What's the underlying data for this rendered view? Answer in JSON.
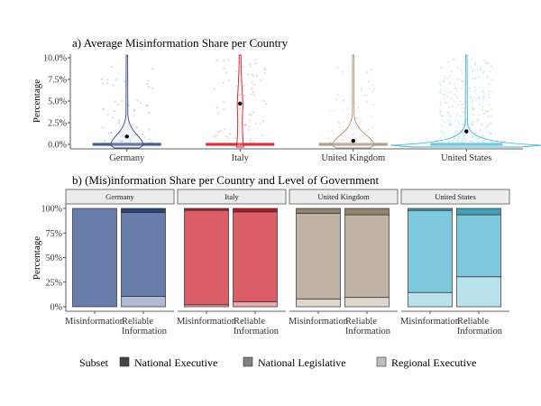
{
  "chart_data": [
    {
      "type": "violin",
      "title": "a) Average Misinformation Share per Country",
      "xlabel": "",
      "ylabel": "Percentage",
      "ylim": [
        0,
        10
      ],
      "yticks": [
        "0.0%",
        "2.5%",
        "5.0%",
        "7.5%",
        "10.0%"
      ],
      "ytick_values": [
        0,
        2.5,
        5,
        7.5,
        10
      ],
      "categories": [
        "Germany",
        "Italy",
        "United Kingdom",
        "United States"
      ],
      "colors": [
        "#2f4b8a",
        "#cc1f2a",
        "#a89480",
        "#4ab3cf"
      ],
      "means": [
        0.9,
        4.7,
        0.4,
        1.5
      ],
      "point_density": [
        0.35,
        0.5,
        0.45,
        1.0
      ],
      "point_color": "#000000"
    },
    {
      "type": "bar",
      "stacked": true,
      "title": "b) (Mis)information Share per Country and Level of Government",
      "ylabel": "Percentage",
      "ylim": [
        0,
        100
      ],
      "yticks": [
        "0%",
        "25%",
        "50%",
        "75%",
        "100%"
      ],
      "ytick_values": [
        0,
        25,
        50,
        75,
        100
      ],
      "categories": [
        "Misinformation",
        "Reliable Information"
      ],
      "category_labels": [
        [
          "Misinformation"
        ],
        [
          "Reliable",
          "Information"
        ]
      ],
      "facets": [
        {
          "name": "Germany",
          "base_color": "#2f4b8a",
          "series": [
            {
              "name": "Regional Executive",
              "values": [
                0,
                10.5
              ]
            },
            {
              "name": "National Legislative",
              "values": [
                100,
                85.5
              ]
            },
            {
              "name": "National Executive",
              "values": [
                0,
                4
              ]
            }
          ]
        },
        {
          "name": "Italy",
          "base_color": "#cc1f2a",
          "series": [
            {
              "name": "Regional Executive",
              "values": [
                2,
                5
              ]
            },
            {
              "name": "National Legislative",
              "values": [
                96,
                91.5
              ]
            },
            {
              "name": "National Executive",
              "values": [
                2,
                3.5
              ]
            }
          ]
        },
        {
          "name": "United Kingdom",
          "base_color": "#a89480",
          "series": [
            {
              "name": "Regional Executive",
              "values": [
                8,
                9.5
              ]
            },
            {
              "name": "National Legislative",
              "values": [
                87,
                84
              ]
            },
            {
              "name": "National Executive",
              "values": [
                5,
                6.5
              ]
            }
          ]
        },
        {
          "name": "United States",
          "base_color": "#4ab3cf",
          "series": [
            {
              "name": "Regional Executive",
              "values": [
                14.5,
                30.5
              ]
            },
            {
              "name": "National Legislative",
              "values": [
                83.5,
                63
              ]
            },
            {
              "name": "National Executive",
              "values": [
                2,
                6.5
              ]
            }
          ]
        }
      ],
      "legend": {
        "title": "Subset",
        "position": "bottom",
        "entries": [
          {
            "label": "National Executive",
            "color": "#444444"
          },
          {
            "label": "National Legislative",
            "color": "#808080"
          },
          {
            "label": "Regional Executive",
            "color": "#bdbdbd"
          }
        ]
      }
    }
  ]
}
